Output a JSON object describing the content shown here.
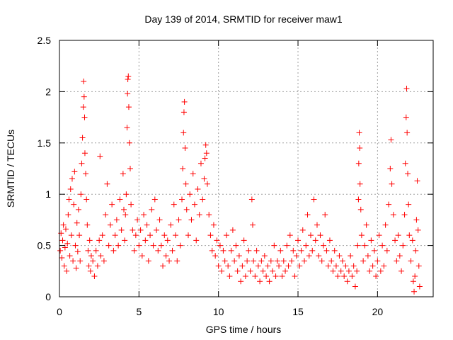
{
  "chart_data": {
    "type": "scatter",
    "title": "Day 139 of 2014, SRMTID for receiver maw1",
    "xlabel": "GPS time / hours",
    "ylabel": "SRMTID / TECUs",
    "xlim": [
      0,
      23.5
    ],
    "ylim": [
      0,
      2.5
    ],
    "xticks": [
      0,
      5,
      10,
      15,
      20
    ],
    "yticks": [
      0,
      0.5,
      1,
      1.5,
      2,
      2.5
    ],
    "xtick_labels": [
      "0",
      "5",
      "10",
      "15",
      "20"
    ],
    "ytick_labels": [
      "0",
      "0.5",
      "1",
      "1.5",
      "2",
      "2.5"
    ],
    "grid": true,
    "marker": "+",
    "marker_color": "#ff0000",
    "series": [
      {
        "name": "maw1",
        "points": [
          [
            0.05,
            0.45
          ],
          [
            0.1,
            0.62
          ],
          [
            0.15,
            0.38
          ],
          [
            0.2,
            0.55
          ],
          [
            0.25,
            0.7
          ],
          [
            0.3,
            0.3
          ],
          [
            0.35,
            0.48
          ],
          [
            0.4,
            0.66
          ],
          [
            0.45,
            0.25
          ],
          [
            0.5,
            0.52
          ],
          [
            0.55,
            0.8
          ],
          [
            0.6,
            0.95
          ],
          [
            0.65,
            0.4
          ],
          [
            0.7,
            1.05
          ],
          [
            0.75,
            0.6
          ],
          [
            0.8,
            1.15
          ],
          [
            0.85,
            0.35
          ],
          [
            0.9,
            0.9
          ],
          [
            0.95,
            1.22
          ],
          [
            1.0,
            0.5
          ],
          [
            1.05,
            0.28
          ],
          [
            1.1,
            0.72
          ],
          [
            1.15,
            0.44
          ],
          [
            1.2,
            0.85
          ],
          [
            1.25,
            0.6
          ],
          [
            1.3,
            0.35
          ],
          [
            1.35,
            1.0
          ],
          [
            1.4,
            1.3
          ],
          [
            1.45,
            1.55
          ],
          [
            1.5,
            1.85
          ],
          [
            1.52,
            2.1
          ],
          [
            1.55,
            1.95
          ],
          [
            1.58,
            1.75
          ],
          [
            1.6,
            1.4
          ],
          [
            1.65,
            1.2
          ],
          [
            1.7,
            0.95
          ],
          [
            1.75,
            0.7
          ],
          [
            1.8,
            0.45
          ],
          [
            1.85,
            0.3
          ],
          [
            1.9,
            0.55
          ],
          [
            1.95,
            0.25
          ],
          [
            2.0,
            0.4
          ],
          [
            2.1,
            0.35
          ],
          [
            2.2,
            0.2
          ],
          [
            2.3,
            0.45
          ],
          [
            2.4,
            0.3
          ],
          [
            2.5,
            0.55
          ],
          [
            2.55,
            1.37
          ],
          [
            2.6,
            0.4
          ],
          [
            2.7,
            0.6
          ],
          [
            2.8,
            0.35
          ],
          [
            2.9,
            0.8
          ],
          [
            3.0,
            1.1
          ],
          [
            3.1,
            0.5
          ],
          [
            3.2,
            0.7
          ],
          [
            3.3,
            0.9
          ],
          [
            3.4,
            0.45
          ],
          [
            3.5,
            0.6
          ],
          [
            3.6,
            0.75
          ],
          [
            3.7,
            0.5
          ],
          [
            3.8,
            0.95
          ],
          [
            3.9,
            0.65
          ],
          [
            4.0,
            1.2
          ],
          [
            4.05,
            0.85
          ],
          [
            4.1,
            0.55
          ],
          [
            4.15,
            0.8
          ],
          [
            4.2,
            1.0
          ],
          [
            4.25,
            1.65
          ],
          [
            4.28,
            1.98
          ],
          [
            4.3,
            2.12
          ],
          [
            4.33,
            2.15
          ],
          [
            4.36,
            1.85
          ],
          [
            4.4,
            1.5
          ],
          [
            4.45,
            1.25
          ],
          [
            4.5,
            0.9
          ],
          [
            4.6,
            0.65
          ],
          [
            4.7,
            0.45
          ],
          [
            4.8,
            0.6
          ],
          [
            4.9,
            0.75
          ],
          [
            5.0,
            0.5
          ],
          [
            5.1,
            0.65
          ],
          [
            5.2,
            0.4
          ],
          [
            5.3,
            0.8
          ],
          [
            5.4,
            0.55
          ],
          [
            5.5,
            0.7
          ],
          [
            5.6,
            0.35
          ],
          [
            5.7,
            0.6
          ],
          [
            5.8,
            0.85
          ],
          [
            5.9,
            0.5
          ],
          [
            6.0,
            0.95
          ],
          [
            6.1,
            0.65
          ],
          [
            6.2,
            0.45
          ],
          [
            6.3,
            0.75
          ],
          [
            6.4,
            0.5
          ],
          [
            6.5,
            0.3
          ],
          [
            6.6,
            0.6
          ],
          [
            6.7,
            0.4
          ],
          [
            6.8,
            0.55
          ],
          [
            6.9,
            0.35
          ],
          [
            7.0,
            0.7
          ],
          [
            7.1,
            0.45
          ],
          [
            7.2,
            0.9
          ],
          [
            7.3,
            0.6
          ],
          [
            7.4,
            0.35
          ],
          [
            7.5,
            0.75
          ],
          [
            7.6,
            0.5
          ],
          [
            7.7,
            0.95
          ],
          [
            7.75,
            1.25
          ],
          [
            7.8,
            1.6
          ],
          [
            7.83,
            1.8
          ],
          [
            7.86,
            1.9
          ],
          [
            7.9,
            1.45
          ],
          [
            7.95,
            1.1
          ],
          [
            8.0,
            0.85
          ],
          [
            8.1,
            0.6
          ],
          [
            8.2,
            1.0
          ],
          [
            8.3,
            0.75
          ],
          [
            8.4,
            1.2
          ],
          [
            8.5,
            0.9
          ],
          [
            8.6,
            0.55
          ],
          [
            8.7,
            1.05
          ],
          [
            8.8,
            0.8
          ],
          [
            8.9,
            1.3
          ],
          [
            9.0,
            0.95
          ],
          [
            9.1,
            1.15
          ],
          [
            9.15,
            1.35
          ],
          [
            9.2,
            1.48
          ],
          [
            9.25,
            1.4
          ],
          [
            9.3,
            1.1
          ],
          [
            9.4,
            0.8
          ],
          [
            9.5,
            0.6
          ],
          [
            9.6,
            0.45
          ],
          [
            9.7,
            0.7
          ],
          [
            9.8,
            0.4
          ],
          [
            9.9,
            0.55
          ],
          [
            10.0,
            0.3
          ],
          [
            10.1,
            0.5
          ],
          [
            10.2,
            0.25
          ],
          [
            10.3,
            0.45
          ],
          [
            10.4,
            0.35
          ],
          [
            10.5,
            0.6
          ],
          [
            10.6,
            0.3
          ],
          [
            10.7,
            0.2
          ],
          [
            10.8,
            0.45
          ],
          [
            10.9,
            0.65
          ],
          [
            11.0,
            0.35
          ],
          [
            11.1,
            0.5
          ],
          [
            11.2,
            0.25
          ],
          [
            11.3,
            0.4
          ],
          [
            11.4,
            0.15
          ],
          [
            11.5,
            0.3
          ],
          [
            11.6,
            0.55
          ],
          [
            11.7,
            0.2
          ],
          [
            11.8,
            0.35
          ],
          [
            11.9,
            0.45
          ],
          [
            12.0,
            0.25
          ],
          [
            12.1,
            0.95
          ],
          [
            12.15,
            0.7
          ],
          [
            12.2,
            0.35
          ],
          [
            12.3,
            0.2
          ],
          [
            12.4,
            0.45
          ],
          [
            12.5,
            0.3
          ],
          [
            12.6,
            0.15
          ],
          [
            12.7,
            0.35
          ],
          [
            12.8,
            0.25
          ],
          [
            12.9,
            0.4
          ],
          [
            13.0,
            0.2
          ],
          [
            13.1,
            0.3
          ],
          [
            13.2,
            0.15
          ],
          [
            13.3,
            0.35
          ],
          [
            13.4,
            0.25
          ],
          [
            13.5,
            0.5
          ],
          [
            13.6,
            0.2
          ],
          [
            13.7,
            0.35
          ],
          [
            13.8,
            0.3
          ],
          [
            13.9,
            0.45
          ],
          [
            14.0,
            0.2
          ],
          [
            14.1,
            0.35
          ],
          [
            14.2,
            0.25
          ],
          [
            14.3,
            0.5
          ],
          [
            14.4,
            0.3
          ],
          [
            14.5,
            0.6
          ],
          [
            14.6,
            0.35
          ],
          [
            14.7,
            0.45
          ],
          [
            14.8,
            0.2
          ],
          [
            14.9,
            0.4
          ],
          [
            15.0,
            0.55
          ],
          [
            15.1,
            0.3
          ],
          [
            15.2,
            0.45
          ],
          [
            15.3,
            0.65
          ],
          [
            15.4,
            0.35
          ],
          [
            15.5,
            0.5
          ],
          [
            15.6,
            0.8
          ],
          [
            15.7,
            0.4
          ],
          [
            15.8,
            0.6
          ],
          [
            15.9,
            0.45
          ],
          [
            16.0,
            0.95
          ],
          [
            16.1,
            0.55
          ],
          [
            16.2,
            0.7
          ],
          [
            16.3,
            0.4
          ],
          [
            16.4,
            0.6
          ],
          [
            16.5,
            0.35
          ],
          [
            16.6,
            0.5
          ],
          [
            16.7,
            0.8
          ],
          [
            16.8,
            0.45
          ],
          [
            16.9,
            0.3
          ],
          [
            17.0,
            0.55
          ],
          [
            17.1,
            0.35
          ],
          [
            17.2,
            0.25
          ],
          [
            17.3,
            0.45
          ],
          [
            17.4,
            0.3
          ],
          [
            17.5,
            0.2
          ],
          [
            17.6,
            0.4
          ],
          [
            17.7,
            0.25
          ],
          [
            17.8,
            0.35
          ],
          [
            17.9,
            0.2
          ],
          [
            18.0,
            0.3
          ],
          [
            18.1,
            0.15
          ],
          [
            18.2,
            0.25
          ],
          [
            18.3,
            0.4
          ],
          [
            18.4,
            0.2
          ],
          [
            18.5,
            0.3
          ],
          [
            18.6,
            0.1
          ],
          [
            18.7,
            0.25
          ],
          [
            18.75,
            0.5
          ],
          [
            18.8,
            0.95
          ],
          [
            18.82,
            1.3
          ],
          [
            18.85,
            1.6
          ],
          [
            18.88,
            1.45
          ],
          [
            18.9,
            1.1
          ],
          [
            18.95,
            0.85
          ],
          [
            19.0,
            0.6
          ],
          [
            19.1,
            0.35
          ],
          [
            19.2,
            0.5
          ],
          [
            19.3,
            0.7
          ],
          [
            19.4,
            0.4
          ],
          [
            19.5,
            0.25
          ],
          [
            19.6,
            0.55
          ],
          [
            19.7,
            0.3
          ],
          [
            19.8,
            0.45
          ],
          [
            19.9,
            0.2
          ],
          [
            20.0,
            0.35
          ],
          [
            20.1,
            0.6
          ],
          [
            20.2,
            0.25
          ],
          [
            20.3,
            0.5
          ],
          [
            20.4,
            0.3
          ],
          [
            20.5,
            0.7
          ],
          [
            20.6,
            0.45
          ],
          [
            20.7,
            0.9
          ],
          [
            20.8,
            1.25
          ],
          [
            20.85,
            1.53
          ],
          [
            20.9,
            1.1
          ],
          [
            21.0,
            0.8
          ],
          [
            21.1,
            0.55
          ],
          [
            21.2,
            0.35
          ],
          [
            21.3,
            0.6
          ],
          [
            21.4,
            0.4
          ],
          [
            21.5,
            0.25
          ],
          [
            21.6,
            0.5
          ],
          [
            21.7,
            0.8
          ],
          [
            21.75,
            1.3
          ],
          [
            21.8,
            1.75
          ],
          [
            21.83,
            2.03
          ],
          [
            21.86,
            1.6
          ],
          [
            21.9,
            1.2
          ],
          [
            21.95,
            0.9
          ],
          [
            22.0,
            0.6
          ],
          [
            22.1,
            0.35
          ],
          [
            22.2,
            0.55
          ],
          [
            22.25,
            0.15
          ],
          [
            22.3,
            0.05
          ],
          [
            22.35,
            0.2
          ],
          [
            22.4,
            0.45
          ],
          [
            22.45,
            0.75
          ],
          [
            22.5,
            1.13
          ],
          [
            22.55,
            0.65
          ],
          [
            22.6,
            0.3
          ],
          [
            22.65,
            0.1
          ]
        ]
      }
    ]
  }
}
